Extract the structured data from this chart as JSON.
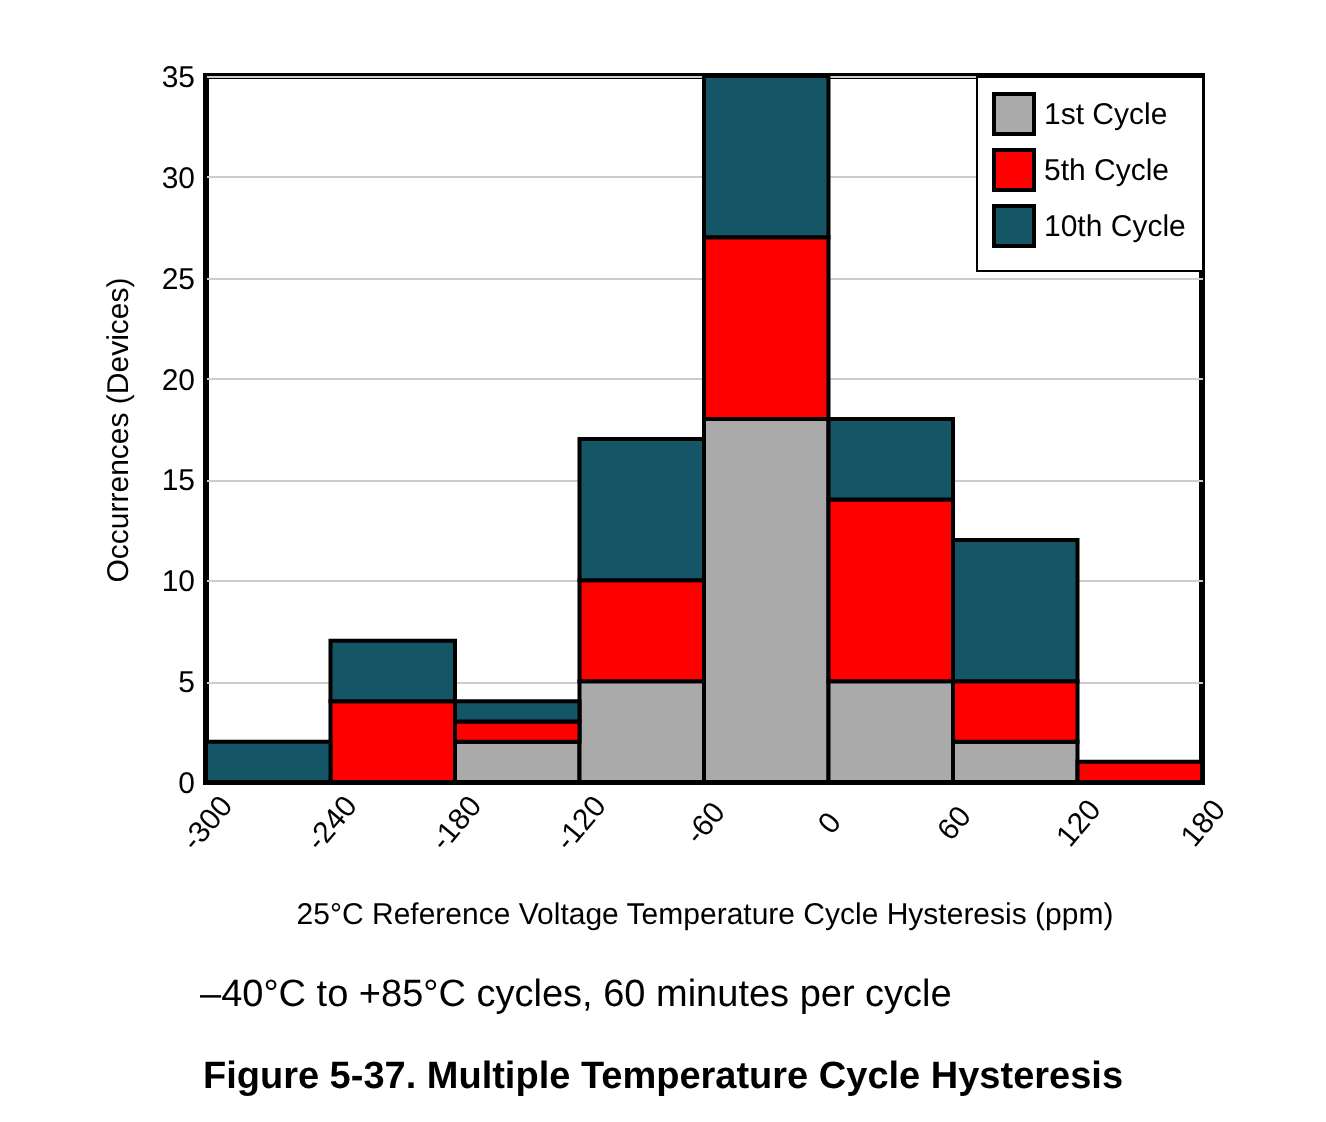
{
  "chart_data": {
    "type": "bar",
    "title": "Figure 5-37. Multiple Temperature Cycle Hysteresis",
    "xlabel": "25°C Reference Voltage Temperature Cycle Hysteresis (ppm)",
    "ylabel": "Occurrences (Devices)",
    "annotations": [
      "–40°C to +85°C cycles, 60 minutes per cycle"
    ],
    "x": [
      -270,
      -210,
      -150,
      -90,
      -30,
      30,
      90,
      150
    ],
    "stacked": true,
    "series": [
      {
        "name": "1st Cycle",
        "color": "#aaaaaa",
        "values": [
          0,
          0,
          2,
          5,
          18,
          5,
          2,
          0
        ]
      },
      {
        "name": "5th Cycle",
        "color": "#ff0000",
        "values": [
          0,
          4,
          1,
          5,
          9,
          9,
          3,
          1
        ]
      },
      {
        "name": "10th Cycle",
        "color": "#145566",
        "values": [
          2,
          3,
          1,
          7,
          8,
          4,
          7,
          0
        ]
      }
    ],
    "xlim": [
      -300,
      180
    ],
    "xticks": [
      -300,
      -240,
      -180,
      -120,
      -60,
      0,
      60,
      120,
      180
    ],
    "ylim": [
      0,
      35
    ],
    "yticks": [
      0,
      5,
      10,
      15,
      20,
      25,
      30,
      35
    ],
    "grid": "y",
    "legend": "top right"
  }
}
